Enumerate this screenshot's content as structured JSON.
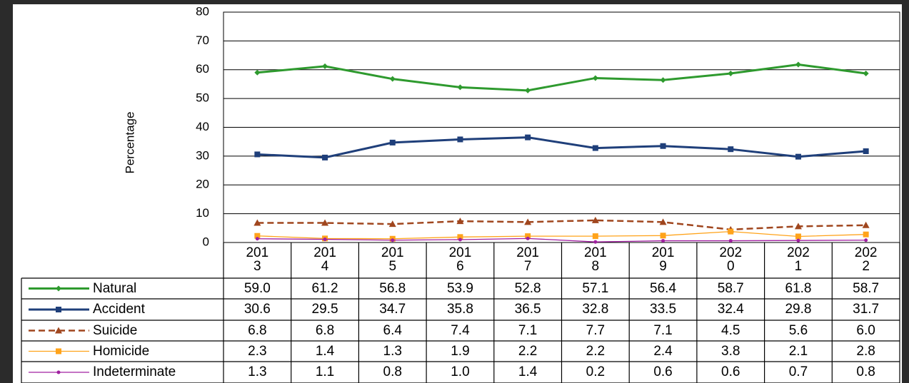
{
  "chart_data": {
    "type": "line",
    "y_label": "Percentage",
    "categories": [
      "2013",
      "2014",
      "2015",
      "2016",
      "2017",
      "2018",
      "2019",
      "2020",
      "2021",
      "2022"
    ],
    "ylim": [
      0,
      80
    ],
    "yticks": [
      0,
      10,
      20,
      30,
      40,
      50,
      60,
      70,
      80
    ],
    "grid": true,
    "series": [
      {
        "name": "Natural",
        "color": "#2e9a2e",
        "marker": "diamond",
        "dash": false,
        "values": [
          59.0,
          61.2,
          56.8,
          53.9,
          52.8,
          57.1,
          56.4,
          58.7,
          61.8,
          58.7
        ],
        "value_labels": [
          "59.0",
          "61.2",
          "56.8",
          "53.9",
          "52.8",
          "57.1",
          "56.4",
          "58.7",
          "61.8",
          "58.7"
        ]
      },
      {
        "name": "Accident",
        "color": "#1f3f7a",
        "marker": "square",
        "dash": false,
        "values": [
          30.6,
          29.5,
          34.7,
          35.8,
          36.5,
          32.8,
          33.5,
          32.4,
          29.8,
          31.7
        ],
        "value_labels": [
          "30.6",
          "29.5",
          "34.7",
          "35.8",
          "36.5",
          "32.8",
          "33.5",
          "32.4",
          "29.8",
          "31.7"
        ]
      },
      {
        "name": "Suicide",
        "color": "#a0461e",
        "marker": "triangle",
        "dash": true,
        "values": [
          6.8,
          6.8,
          6.4,
          7.4,
          7.1,
          7.7,
          7.1,
          4.5,
          5.6,
          6.0
        ],
        "value_labels": [
          "6.8",
          "6.8",
          "6.4",
          "7.4",
          "7.1",
          "7.7",
          "7.1",
          "4.5",
          "5.6",
          "6.0"
        ]
      },
      {
        "name": "Homicide",
        "color": "#ffa31a",
        "marker": "square",
        "dash": false,
        "values": [
          2.3,
          1.4,
          1.3,
          1.9,
          2.2,
          2.2,
          2.4,
          3.8,
          2.1,
          2.8
        ],
        "value_labels": [
          "2.3",
          "1.4",
          "1.3",
          "1.9",
          "2.2",
          "2.2",
          "2.4",
          "3.8",
          "2.1",
          "2.8"
        ]
      },
      {
        "name": "Indeterminate",
        "color": "#a020a0",
        "marker": "dot",
        "dash": false,
        "values": [
          1.3,
          1.1,
          0.8,
          1.0,
          1.4,
          0.2,
          0.6,
          0.6,
          0.7,
          0.8
        ],
        "value_labels": [
          "1.3",
          "1.1",
          "0.8",
          "1.0",
          "1.4",
          "0.2",
          "0.6",
          "0.6",
          "0.7",
          "0.8"
        ]
      }
    ]
  }
}
